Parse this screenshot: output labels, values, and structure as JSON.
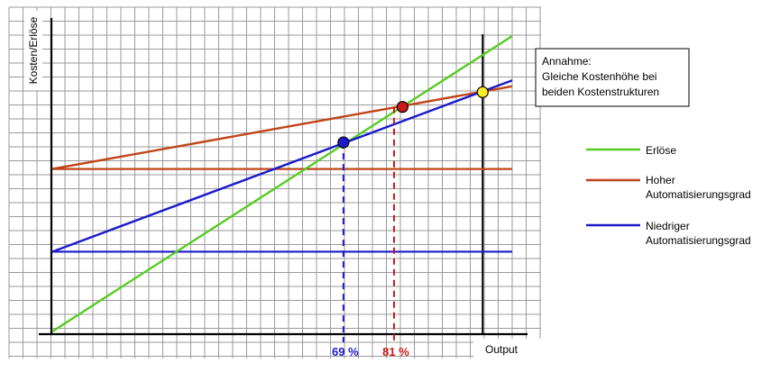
{
  "chart_data": {
    "type": "line",
    "ylabel": "Kosten/Erlöse",
    "xlabel": "Output",
    "annotation": {
      "lines": [
        "Annahme:",
        "Gleiche Kostenhöhe bei",
        "beiden Kostenstrukturen"
      ]
    },
    "markers": [
      {
        "label": "69 %",
        "x": 69,
        "color": "#1a1acc"
      },
      {
        "label": "81 %",
        "x": 81,
        "color": "#cc1a1a"
      }
    ],
    "series": [
      {
        "name": "Erlöse",
        "color": "#55cc22",
        "legend_lines": [
          "Erlöse"
        ],
        "points": [
          [
            0,
            0
          ],
          [
            109,
            100
          ]
        ]
      },
      {
        "name": "Hoher Automatisierungsgrad",
        "color": "#c04418",
        "legend_lines": [
          "Hoher",
          "Automatisierungsgrad"
        ],
        "points": [
          [
            0,
            55
          ],
          [
            109,
            83
          ]
        ]
      },
      {
        "name": "Niedriger Automatisierungsgrad",
        "color": "#1a1acc",
        "legend_lines": [
          "Niedriger",
          "Automatisierungsgrad"
        ],
        "points": [
          [
            0,
            27
          ],
          [
            109,
            85
          ]
        ]
      }
    ],
    "fixed_cost_lines": [
      {
        "series": "Hoher Automatisierungsgrad",
        "y": 55,
        "color": "#c04418"
      },
      {
        "series": "Niedriger Automatisierungsgrad",
        "y": 27,
        "color": "#1a1acc"
      }
    ],
    "intersections": [
      {
        "x": 69,
        "y": 64,
        "color": "#1a1acc"
      },
      {
        "x": 83,
        "y": 76,
        "color": "#cc1a1a"
      },
      {
        "x": 102,
        "y": 81,
        "color": "#ffee22"
      }
    ],
    "capacity_line_x": 102,
    "xlim": [
      0,
      109
    ],
    "ylim": [
      0,
      100
    ],
    "grid": true
  }
}
